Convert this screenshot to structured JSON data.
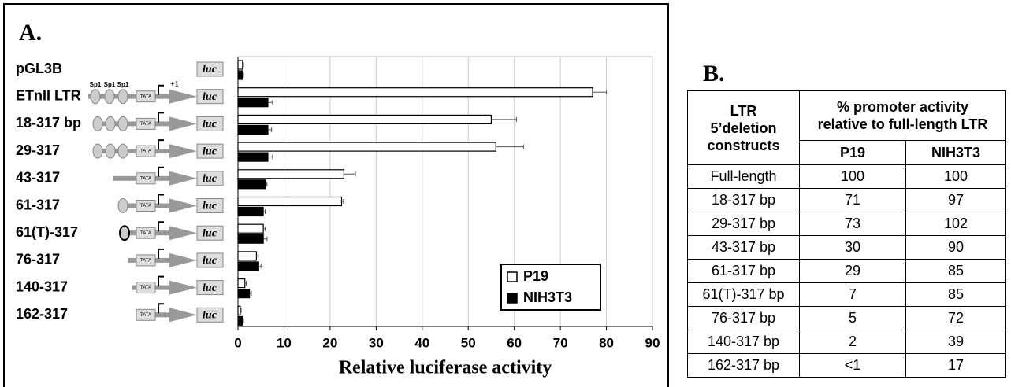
{
  "chart_data": {
    "type": "bar",
    "orientation": "horizontal",
    "title": "A.",
    "categories": [
      "pGL3B",
      "ETnII LTR",
      "18-317 bp",
      "29-317",
      "43-317",
      "61-317",
      "61(T)-317",
      "76-317",
      "140-317",
      "162-317"
    ],
    "series": [
      {
        "name": "P19",
        "color": "#ffffff",
        "values": [
          1,
          77,
          55,
          56,
          23,
          22.5,
          5.5,
          4,
          1.5,
          0.5
        ],
        "errors": [
          0.2,
          3,
          5.5,
          6,
          2.5,
          0.4,
          0.4,
          0.4,
          0.3,
          0.2
        ]
      },
      {
        "name": "NIH3T3",
        "color": "#000000",
        "values": [
          1,
          6.5,
          6.5,
          6.5,
          6,
          5.5,
          5.5,
          4.5,
          2.5,
          1
        ],
        "errors": [
          0.2,
          1,
          0.8,
          1,
          0.3,
          0.4,
          0.8,
          0.5,
          0.4,
          0.2
        ]
      }
    ],
    "xlabel": "Relative luciferase activity",
    "xlim": [
      0,
      90
    ],
    "xticks": [
      0,
      10,
      20,
      30,
      40,
      50,
      60,
      70,
      80,
      90
    ],
    "grid": true,
    "legend": "lower right",
    "diagram_labels": {
      "reporter": "luc",
      "tata": "TATA",
      "sp1": "Sp1",
      "start": "+1"
    }
  },
  "table": {
    "title": "B.",
    "header": {
      "construct": "LTR\n5’deletion\nconstructs",
      "activity": "% promoter activity\nrelative to full-length LTR",
      "p19": "P19",
      "nih3t3": "NIH3T3"
    },
    "rows": [
      [
        "Full-length",
        100,
        100
      ],
      [
        "18-317 bp",
        71,
        97
      ],
      [
        "29-317 bp",
        73,
        102
      ],
      [
        "43-317 bp",
        30,
        90
      ],
      [
        "61-317 bp",
        29,
        85
      ],
      [
        "61(T)-317 bp",
        7,
        85
      ],
      [
        "76-317 bp",
        5,
        72
      ],
      [
        "140-317 bp",
        2,
        39
      ],
      [
        "162-317 bp",
        "<1",
        17
      ]
    ]
  }
}
